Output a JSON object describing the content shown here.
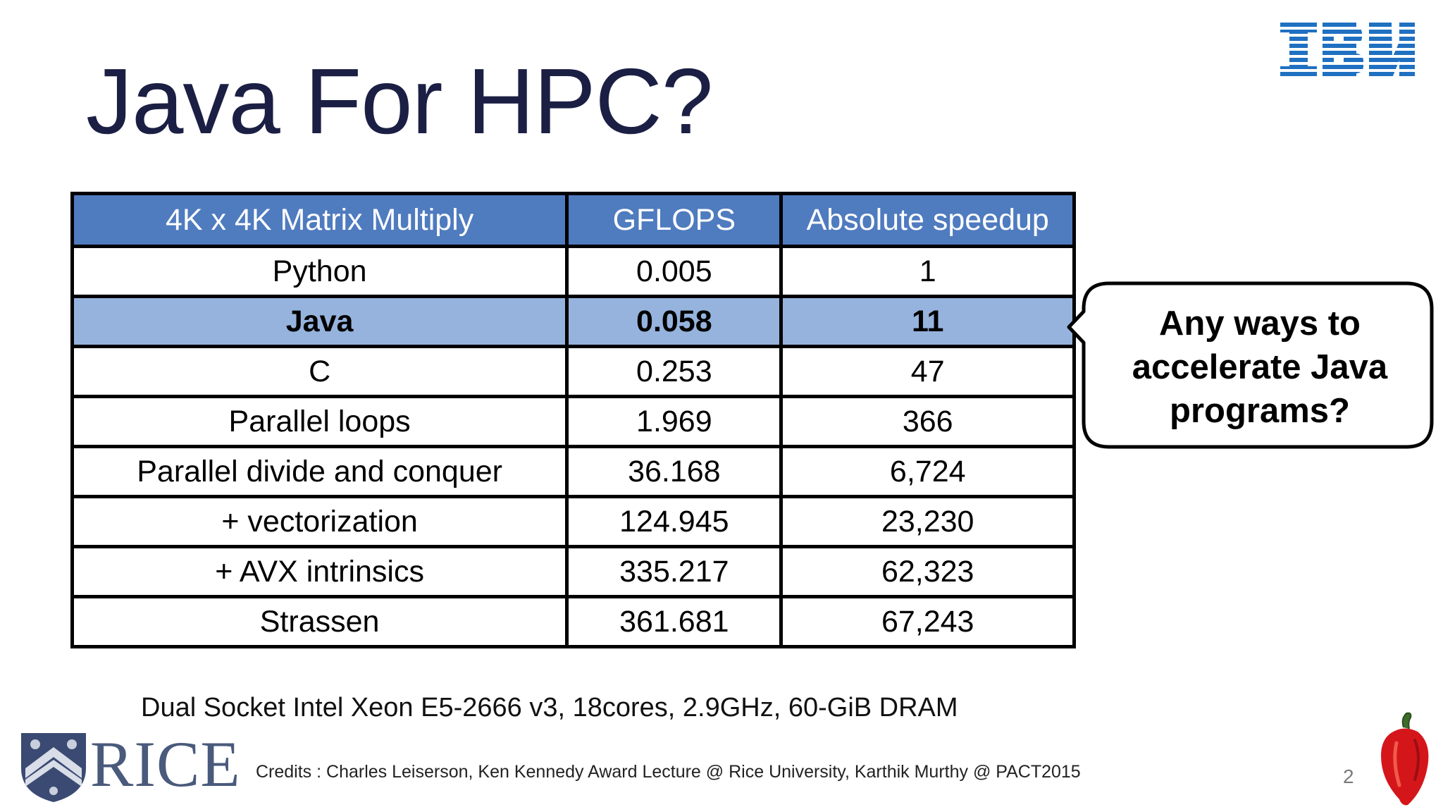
{
  "slide": {
    "title": "Java For HPC?",
    "page_number": "2"
  },
  "table": {
    "headers": [
      "4K x 4K Matrix Multiply",
      "GFLOPS",
      "Absolute speedup"
    ],
    "rows": [
      [
        "Python",
        "0.005",
        "1"
      ],
      [
        "Java",
        "0.058",
        "11"
      ],
      [
        "C",
        "0.253",
        "47"
      ],
      [
        "Parallel loops",
        "1.969",
        "366"
      ],
      [
        "Parallel divide and conquer",
        "36.168",
        "6,724"
      ],
      [
        "+ vectorization",
        "124.945",
        "23,230"
      ],
      [
        "+ AVX intrinsics",
        "335.217",
        "62,323"
      ],
      [
        "Strassen",
        "361.681",
        "67,243"
      ]
    ],
    "highlighted_row": "Java",
    "colors": {
      "header_bg": "#4f7bbf",
      "highlight_bg": "#95b3dd"
    }
  },
  "callout": {
    "lines": [
      "Any ways to",
      "accelerate Java",
      "programs?"
    ]
  },
  "footnote": "Dual Socket Intel Xeon E5-2666 v3,  18cores, 2.9GHz, 60-GiB DRAM",
  "credits": "Credits : Charles Leiserson, Ken Kennedy Award Lecture @ Rice University, Karthik Murthy @ PACT2015",
  "logos": {
    "ibm": "IBM",
    "rice": "RICE"
  },
  "icons": {
    "ibm_logo": "ibm-logo-icon",
    "rice_shield": "rice-shield-icon",
    "pepper": "habanero-pepper-icon"
  }
}
